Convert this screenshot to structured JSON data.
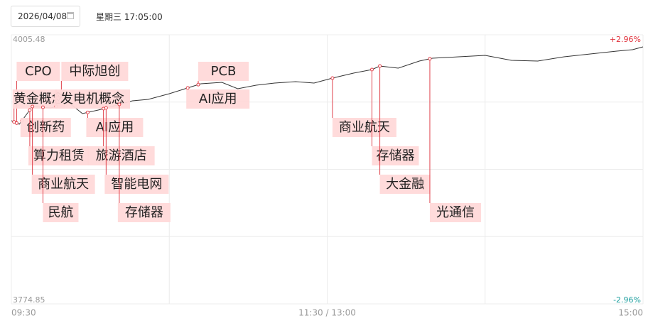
{
  "header": {
    "date": "2026/04/08",
    "datetime": "星期三 17:05:00"
  },
  "chart_data": {
    "type": "line",
    "color": "#333333",
    "x": [
      0,
      3,
      8,
      15,
      22,
      27,
      33,
      40,
      46,
      52,
      60,
      66,
      72,
      80,
      86,
      93,
      100,
      108,
      115,
      120,
      122,
      130,
      137,
      140,
      147,
      155,
      160,
      170,
      180,
      190,
      200,
      210,
      220,
      230,
      236,
      240
    ],
    "values": [
      3931.85,
      3928.81,
      3944.02,
      3942.8,
      3947.06,
      3937.94,
      3940.98,
      3945.24,
      3948.89,
      3950.11,
      3954.97,
      3959.23,
      3963.49,
      3964.71,
      3959.23,
      3962.28,
      3964.1,
      3965.32,
      3964.1,
      3967.14,
      3968.36,
      3972.62,
      3975.66,
      3978.71,
      3976.88,
      3982.97,
      3985.4,
      3986.62,
      3987.83,
      3983.57,
      3982.97,
      3986.62,
      3989.05,
      3991.48,
      3992.7,
      3995.14
    ],
    "xlim": [
      0,
      240
    ],
    "xticks": [
      {
        "value": 0,
        "label": "09:30"
      },
      {
        "value": 120,
        "label": "11:30 / 13:00"
      },
      {
        "value": 240,
        "label": "15:00"
      }
    ],
    "ylim": [
      3774.85,
      4005.48
    ],
    "yticks": [
      4005.48,
      3774.85
    ],
    "y2lim": [
      -2.96,
      2.96
    ],
    "y2ticks": [
      {
        "value": 2.96,
        "label": "+2.96%"
      },
      {
        "value": -2.96,
        "label": "-2.96%"
      }
    ],
    "grid": true,
    "annotations": [
      {
        "text": "CPO",
        "x": 2
      },
      {
        "text": "中际旭创",
        "x": 19
      },
      {
        "text": "黄金概念",
        "x": 1
      },
      {
        "text": "发电机概念",
        "x": 17
      },
      {
        "text": "创新药",
        "x": 4
      },
      {
        "text": "AI应用",
        "x": 29
      },
      {
        "text": "算力租赁",
        "x": 7
      },
      {
        "text": "旅游酒店",
        "x": 35
      },
      {
        "text": "商业航天",
        "x": 8
      },
      {
        "text": "智能电网",
        "x": 36
      },
      {
        "text": "民航",
        "x": 12
      },
      {
        "text": "存储器",
        "x": 41
      },
      {
        "text": "PCB",
        "x": 71
      },
      {
        "text": "AI应用",
        "x": 67
      },
      {
        "text": "商业航天",
        "x": 122
      },
      {
        "text": "存储器",
        "x": 137
      },
      {
        "text": "大金融",
        "x": 140
      },
      {
        "text": "光通信",
        "x": 159
      }
    ]
  }
}
